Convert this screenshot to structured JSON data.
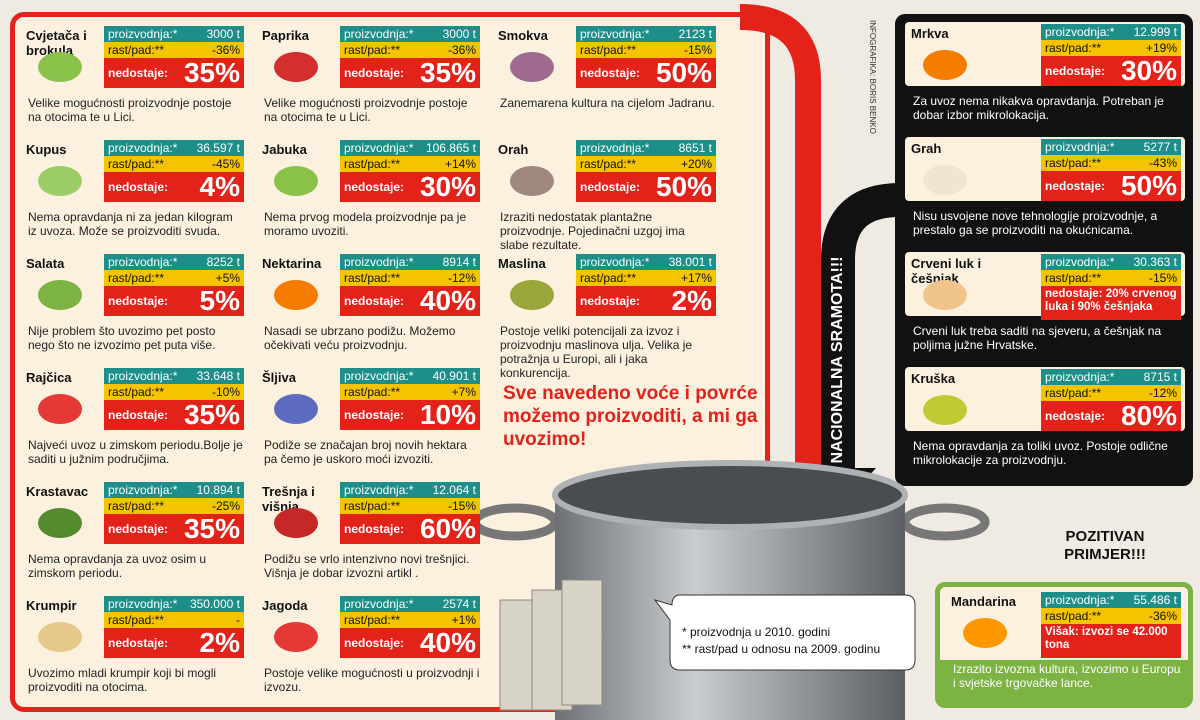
{
  "labels": {
    "production": "proizvodnja:*",
    "change": "rast/pad:**",
    "missing": "nedostaje:"
  },
  "credit": "INFOGRAFIKA: BORIS BENKO",
  "headline": "Sve navedeno voće i povrće možemo proizvoditi, a mi ga uvozimo!",
  "shame": "NACIONALNA SRAMOTA!!!",
  "footnotes": [
    "* proizvodnja u 2010. godini",
    "** rast/pad u odnosu na 2009. godinu"
  ],
  "positive_title": "POZITIVAN PRIMJER!!!",
  "red_cards": [
    {
      "name": "Cvjetača i brokula",
      "production": "3000 t",
      "change": "-36%",
      "missing": "35%",
      "text": "Velike mogućnosti proizvodnje postoje na otocima te u Lici."
    },
    {
      "name": "Kupus",
      "production": "36.597 t",
      "change": "-45%",
      "missing": "4%",
      "text": "Nema opravdanja ni za jedan kilogram iz uvoza. Može se proizvoditi svuda."
    },
    {
      "name": "Salata",
      "production": "8252 t",
      "change": "+5%",
      "missing": "5%",
      "text": "Nije problem što uvozimo pet posto nego što ne izvozimo pet puta više."
    },
    {
      "name": "Rajčica",
      "production": "33.648 t",
      "change": "-10%",
      "missing": "35%",
      "text": "Najveći uvoz u zimskom periodu.Bolje je saditi u južnim područjima."
    },
    {
      "name": "Krastavac",
      "production": "10.894 t",
      "change": "-25%",
      "missing": "35%",
      "text": "Nema opravdanja za uvoz osim u zimskom periodu."
    },
    {
      "name": "Krumpir",
      "production": "350.000 t",
      "change": "-",
      "missing": "2%",
      "text": "Uvozimo mladi krumpir koji bi mogli proizvoditi na otocima."
    },
    {
      "name": "Paprika",
      "production": "3000 t",
      "change": "-36%",
      "missing": "35%",
      "text": "Velike mogućnosti proizvodnje postoje na otocima te u Lici."
    },
    {
      "name": "Jabuka",
      "production": "106.865 t",
      "change": "+14%",
      "missing": "30%",
      "text": "Nema prvog modela proizvodnje pa je moramo uvoziti."
    },
    {
      "name": "Nektarina",
      "production": "8914 t",
      "change": "-12%",
      "missing": "40%",
      "text": "Nasadi se ubrzano podižu. Možemo očekivati veću proizvodnju."
    },
    {
      "name": "Šljiva",
      "production": "40.901 t",
      "change": "+7%",
      "missing": "10%",
      "text": "Podiže se značajan broj novih hektara pa čemo je uskoro moći izvoziti."
    },
    {
      "name": "Trešnja i višnja",
      "production": "12.064 t",
      "change": "-15%",
      "missing": "60%",
      "text": "Podižu se vrlo intenzivno novi trešnjici. Višnja je dobar izvozni artikl ."
    },
    {
      "name": "Jagoda",
      "production": "2574 t",
      "change": "+1%",
      "missing": "40%",
      "text": "Postoje velike mogućnosti u proizvodnji i izvozu."
    },
    {
      "name": "Smokva",
      "production": "2123 t",
      "change": "-15%",
      "missing": "50%",
      "text": "Zanemarena kultura na cijelom Jadranu."
    },
    {
      "name": "Orah",
      "production": "8651 t",
      "change": "+20%",
      "missing": "50%",
      "text": "Izraziti nedostatak plantažne proizvodnje. Pojedinačni uzgoj ima slabe rezultate."
    },
    {
      "name": "Maslina",
      "production": "38.001 t",
      "change": "+17%",
      "missing": "2%",
      "text": "Postoje veliki potencijali za izvoz i proizvodnju maslinova ulja. Velika je potražnja u Europi, ali i jaka konkurencija."
    }
  ],
  "black_cards": [
    {
      "name": "Mrkva",
      "production": "12.999 t",
      "change": "+19%",
      "missing": "30%",
      "text": "Za uvoz nema nikakva opravdanja. Potreban je dobar izbor mikrolokacija."
    },
    {
      "name": "Grah",
      "production": "5277 t",
      "change": "-43%",
      "missing": "50%",
      "text": "Nisu usvojene nove tehnologije proizvodnje, a prestalo ga se proizvoditi na okućnicama."
    },
    {
      "name": "Crveni luk i češnjak",
      "production": "30.363 t",
      "change": "-15%",
      "note": "nedostaje: 20% crvenog luka i 90% češnjaka",
      "text": "Crveni luk treba saditi na sjeveru, a češnjak na poljima južne Hrvatske."
    },
    {
      "name": "Kruška",
      "production": "8715 t",
      "change": "-12%",
      "missing": "80%",
      "text": "Nema opravdanja za toliki uvoz. Postoje odlične mikrolokacije za proizvodnju."
    }
  ],
  "green_card": {
    "name": "Mandarina",
    "production": "55.486 t",
    "change": "-36%",
    "note": "Višak: izvozi se 42.000 tona",
    "text": "Izrazito izvozna kultura, izvozimo u Europu i svjetske trgovačke lance."
  }
}
